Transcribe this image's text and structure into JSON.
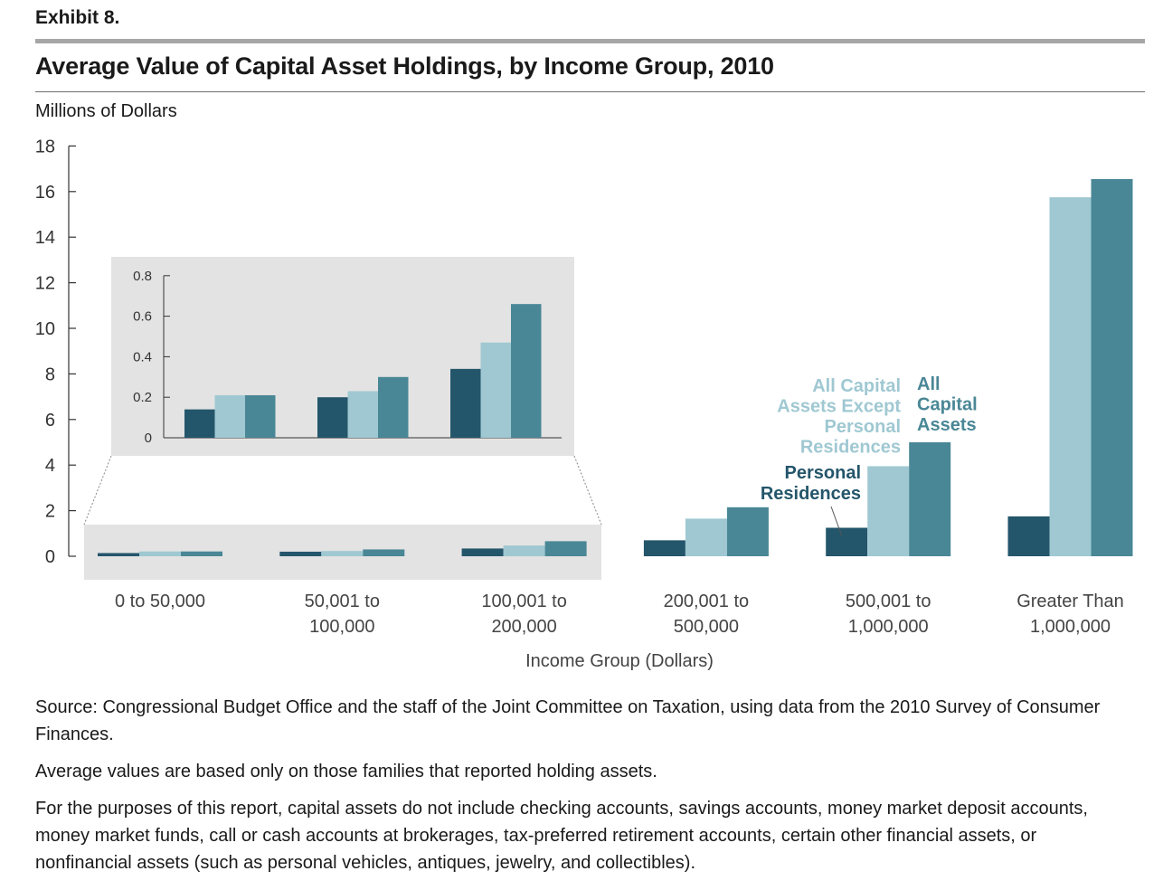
{
  "header": {
    "exhibit": "Exhibit 8.",
    "title": "Average Value of Capital Asset Holdings, by Income Group, 2010",
    "unit_label": "Millions of Dollars"
  },
  "colors": {
    "personal": "#24566b",
    "except": "#9fc8d2",
    "all": "#4a8796",
    "inset_bg": "#e3e3e3",
    "axis": "#333333"
  },
  "chart_data": {
    "type": "bar",
    "categories": [
      [
        "0 to 50,000"
      ],
      [
        "50,001 to",
        "100,000"
      ],
      [
        "100,001 to",
        "200,000"
      ],
      [
        "200,001 to",
        "500,000"
      ],
      [
        "500,001 to",
        "1,000,000"
      ],
      [
        "Greater Than",
        "1,000,000"
      ]
    ],
    "xlabel": "Income Group (Dollars)",
    "ylim": [
      0,
      18
    ],
    "yticks": [
      "0",
      "2",
      "4",
      "6",
      "8",
      "10",
      "12",
      "14",
      "16",
      "18"
    ],
    "series": [
      {
        "key": "personal",
        "values": [
          0.14,
          0.2,
          0.34,
          0.7,
          1.25,
          1.75
        ]
      },
      {
        "key": "except",
        "values": [
          0.21,
          0.23,
          0.47,
          1.65,
          3.95,
          15.75
        ]
      },
      {
        "key": "all",
        "values": [
          0.21,
          0.3,
          0.66,
          2.15,
          5.0,
          16.55
        ]
      }
    ],
    "annotations": {
      "except_label": [
        "All Capital",
        "Assets Except",
        "Personal",
        "Residences"
      ],
      "all_label": [
        "All",
        "Capital",
        "Assets"
      ],
      "personal_label": [
        "Personal",
        "Residences"
      ]
    },
    "inset": {
      "ylim": [
        0,
        0.8
      ],
      "yticks": [
        "0",
        "0.2",
        "0.4",
        "0.6",
        "0.8"
      ],
      "categories_index": [
        0,
        1,
        2
      ]
    }
  },
  "notes": {
    "source": "Source: Congressional Budget Office and the staff of the Joint Committee on Taxation, using data from the 2010 Survey of Consumer Finances.",
    "average": "Average values are based only on those families that reported holding assets.",
    "purpose": "For the purposes of this report, capital assets do not include checking accounts, savings accounts, money market deposit accounts, money market funds, call or cash accounts at brokerages, tax-preferred retirement accounts, certain other financial assets, or nonfinancial assets (such as personal vehicles, antiques, jewelry, and collectibles)."
  }
}
